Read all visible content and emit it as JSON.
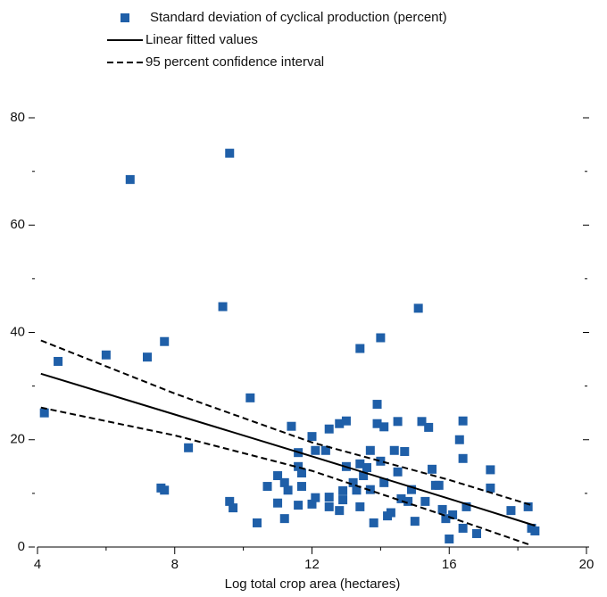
{
  "chart_data": {
    "type": "scatter",
    "x_label": "Log total crop area (hectares)",
    "xlim": [
      4,
      20
    ],
    "xticks": [
      4,
      8,
      12,
      16,
      20
    ],
    "x_minor_ticks": [
      6,
      10,
      14,
      18
    ],
    "ylim": [
      0,
      80
    ],
    "yticks": [
      0,
      20,
      40,
      60,
      80
    ],
    "y_minor_ticks": [
      10,
      30,
      50,
      70
    ],
    "legend": "top",
    "series": [
      {
        "name": "Standard deviation of cyclical production (percent)",
        "type": "scatter",
        "color": "#1f5fa8",
        "x": [
          4.2,
          4.6,
          6.0,
          6.7,
          7.2,
          7.7,
          7.6,
          7.7,
          8.4,
          9.4,
          9.6,
          9.6,
          9.7,
          10.2,
          10.4,
          10.7,
          11.0,
          11.0,
          11.2,
          11.3,
          11.2,
          11.4,
          11.6,
          11.6,
          11.7,
          11.7,
          11.6,
          12.0,
          12.1,
          12.0,
          12.1,
          12.5,
          12.4,
          12.5,
          12.5,
          12.8,
          12.8,
          12.9,
          13.0,
          13.0,
          12.9,
          13.2,
          13.3,
          13.4,
          13.4,
          13.5,
          13.4,
          13.6,
          13.7,
          13.7,
          13.8,
          13.9,
          13.9,
          14.0,
          14.1,
          14.0,
          14.1,
          14.2,
          14.3,
          14.4,
          14.5,
          14.5,
          14.6,
          14.7,
          14.8,
          14.9,
          15.0,
          15.1,
          15.2,
          15.3,
          15.4,
          15.5,
          15.6,
          15.7,
          15.8,
          15.9,
          16.0,
          16.1,
          16.3,
          16.4,
          16.4,
          16.4,
          16.5,
          16.8,
          17.2,
          17.2,
          17.8,
          18.3,
          18.4,
          18.5
        ],
        "values": [
          25,
          34.6,
          35.8,
          68.5,
          35.4,
          38.3,
          11,
          10.6,
          18.5,
          44.8,
          73.4,
          8.5,
          7.3,
          27.8,
          4.5,
          11.3,
          13.3,
          8.2,
          12,
          10.6,
          5.3,
          22.5,
          17.6,
          15,
          13.8,
          11.3,
          7.8,
          20.6,
          18,
          8,
          9.2,
          22,
          18,
          7.5,
          9.3,
          23,
          6.8,
          8.8,
          23.5,
          15,
          10.5,
          12,
          10.6,
          37,
          15.5,
          13.3,
          7.5,
          14.8,
          10.7,
          18,
          4.5,
          26.6,
          23,
          39,
          22.4,
          16,
          12,
          5.8,
          6.4,
          18,
          23.4,
          14,
          9,
          17.8,
          8.5,
          10.7,
          4.8,
          44.5,
          23.4,
          8.5,
          22.3,
          14.5,
          11.5,
          11.5,
          7,
          5.3,
          1.5,
          6,
          20,
          23.5,
          16.5,
          3.5,
          7.5,
          2.5,
          14.4,
          11,
          6.8,
          7.5,
          3.5,
          3
        ]
      },
      {
        "name": "Linear fitted values",
        "type": "line",
        "color": "#000000",
        "dash": "solid",
        "x": [
          4.1,
          8,
          12,
          16,
          18.5
        ],
        "values": [
          32.3,
          24.7,
          16.9,
          9.0,
          4.0
        ]
      },
      {
        "name": "95 percent confidence interval",
        "type": "band",
        "color": "#000000",
        "dash": "dashed",
        "x": [
          4.1,
          8,
          12,
          16,
          18.4
        ],
        "upper": [
          38.5,
          28.6,
          19.5,
          12.5,
          7.8
        ],
        "lower": [
          26.0,
          20.8,
          14.2,
          5.6,
          0.3
        ]
      }
    ]
  }
}
